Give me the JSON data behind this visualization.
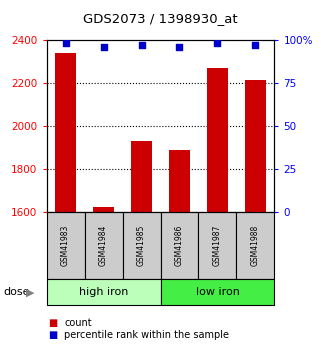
{
  "title": "GDS2073 / 1398930_at",
  "samples": [
    "GSM41983",
    "GSM41984",
    "GSM41985",
    "GSM41986",
    "GSM41987",
    "GSM41988"
  ],
  "counts": [
    2340,
    1622,
    1930,
    1888,
    2270,
    2215
  ],
  "percentiles": [
    98,
    96,
    97,
    96,
    98,
    97
  ],
  "ylim_left": [
    1600,
    2400
  ],
  "ylim_right": [
    0,
    100
  ],
  "yticks_left": [
    1600,
    1800,
    2000,
    2200,
    2400
  ],
  "yticks_right": [
    0,
    25,
    50,
    75,
    100
  ],
  "ytick_labels_right": [
    "0",
    "25",
    "50",
    "75",
    "100%"
  ],
  "groups": [
    {
      "label": "high iron",
      "indices": [
        0,
        1,
        2
      ],
      "color": "#bbffbb"
    },
    {
      "label": "low iron",
      "indices": [
        3,
        4,
        5
      ],
      "color": "#44ee44"
    }
  ],
  "bar_color": "#cc0000",
  "dot_color": "#0000cc",
  "bar_width": 0.55,
  "sample_box_color": "#cccccc",
  "dose_label": "dose",
  "legend_items": [
    {
      "color": "#cc0000",
      "label": "count"
    },
    {
      "color": "#0000cc",
      "label": "percentile rank within the sample"
    }
  ]
}
